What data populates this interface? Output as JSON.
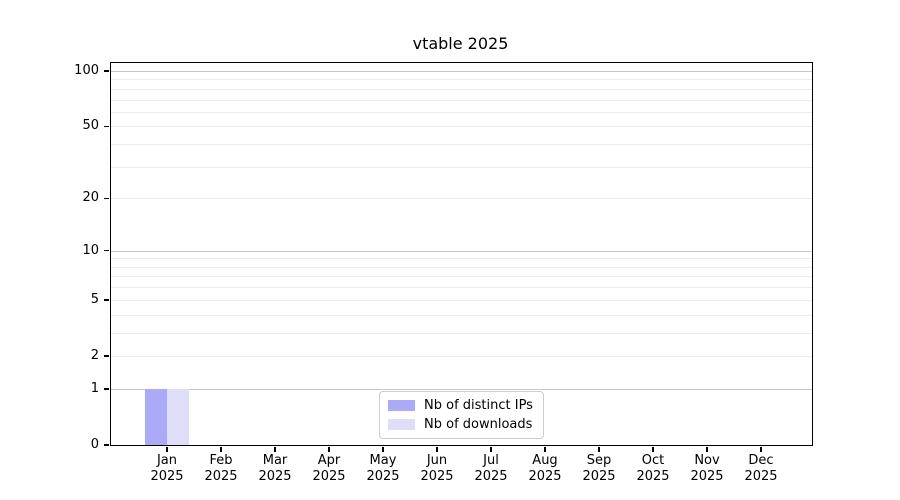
{
  "title": "vtable 2025",
  "chart_data": {
    "type": "bar",
    "title": "vtable 2025",
    "categories": [
      "Jan",
      "Feb",
      "Mar",
      "Apr",
      "May",
      "Jun",
      "Jul",
      "Aug",
      "Sep",
      "Oct",
      "Nov",
      "Dec"
    ],
    "x_year": "2025",
    "series": [
      {
        "name": "Nb of distinct IPs",
        "color": "#aaaaf7",
        "values": [
          1,
          0,
          0,
          0,
          0,
          0,
          0,
          0,
          0,
          0,
          0,
          0
        ]
      },
      {
        "name": "Nb of downloads",
        "color": "#dedef8",
        "values": [
          1,
          0,
          0,
          0,
          0,
          0,
          0,
          0,
          0,
          0,
          0,
          0
        ]
      }
    ],
    "yscale": "log10(v+1)",
    "ylim": [
      0,
      110
    ],
    "yticks": [
      0,
      1,
      2,
      5,
      10,
      20,
      50,
      100
    ],
    "major_gridlines": [
      1,
      10,
      100
    ],
    "minor_gridlines": [
      2,
      3,
      4,
      5,
      6,
      7,
      8,
      9,
      20,
      30,
      40,
      50,
      60,
      70,
      80,
      90
    ],
    "grid": true,
    "legend_position": "lower center"
  },
  "colors": {
    "major_grid": "#c6c6c6",
    "minor_grid": "#ebebeb",
    "spine": "#000000",
    "text": "#000000",
    "legend_border": "#cccccc"
  }
}
